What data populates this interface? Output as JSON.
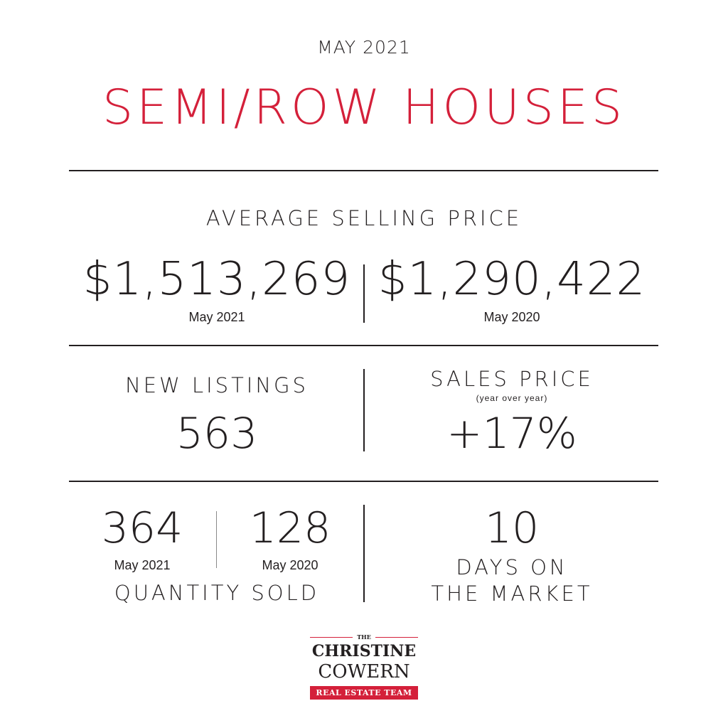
{
  "header": {
    "month": "MAY 2021",
    "title": "SEMI/ROW HOUSES"
  },
  "average_selling_price": {
    "label": "AVERAGE SELLING PRICE",
    "current": {
      "value": "$1,513,269",
      "period": "May 2021"
    },
    "previous": {
      "value": "$1,290,422",
      "period": "May 2020"
    }
  },
  "new_listings": {
    "label": "NEW LISTINGS",
    "value": "563"
  },
  "sales_price": {
    "label": "SALES PRICE",
    "sublabel": "(year over year)",
    "value": "+17%"
  },
  "quantity_sold": {
    "label": "QUANTITY SOLD",
    "current": {
      "value": "364",
      "period": "May 2021"
    },
    "previous": {
      "value": "128",
      "period": "May 2020"
    }
  },
  "days_on_market": {
    "value": "10",
    "label_line1": "DAYS ON",
    "label_line2": "THE MARKET"
  },
  "logo": {
    "the": "THE",
    "line1": "CHRISTINE",
    "line2": "COWERN",
    "tagline": "REAL ESTATE TEAM"
  },
  "colors": {
    "accent": "#d4203a",
    "text": "#231f20",
    "background": "#ffffff"
  }
}
